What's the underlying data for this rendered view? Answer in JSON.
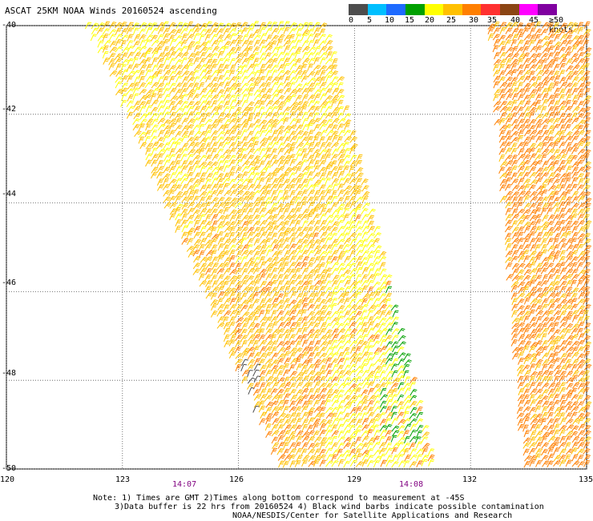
{
  "title": "ASCAT 25KM NOAA Winds 20160524 ascending",
  "legend": {
    "labels": [
      "0",
      "5",
      "10",
      "15",
      "20",
      "25",
      "30",
      "35",
      "40",
      "45",
      "≥50 knots"
    ],
    "colors": [
      "#4d4d4d",
      "#00bfff",
      "#1e6bff",
      "#00a000",
      "#ffff00",
      "#ffc000",
      "#ff7f00",
      "#ff3030",
      "#8b4513",
      "#ff00ff",
      "#8000a0"
    ]
  },
  "y_ticks": [
    "-40",
    "-42",
    "-44",
    "-46",
    "-48",
    "-50"
  ],
  "x_ticks": [
    "120",
    "123",
    "126",
    "129",
    "132",
    "135"
  ],
  "times": [
    "14:07",
    "14:08"
  ],
  "notes": [
    "Note: 1) Times are GMT 2)Times along bottom correspond to measurement at -45S",
    "3)Data buffer is 22 hrs from 20160524 4) Black wind barbs indicate possible contamination",
    "NOAA/NESDIS/Center for Satellite Applications and Research"
  ],
  "map_data": {
    "lon_range": [
      120,
      135
    ],
    "lat_range": [
      -50,
      -40
    ],
    "swaths": [
      {
        "name": "west",
        "corners_lon_lat": [
          [
            122.0,
            -40.0
          ],
          [
            128.2,
            -40.0
          ],
          [
            131.0,
            -50.0
          ],
          [
            127.0,
            -50.0
          ]
        ]
      },
      {
        "name": "east",
        "corners_lon_lat": [
          [
            132.4,
            -40.0
          ],
          [
            135.0,
            -40.0
          ],
          [
            135.0,
            -50.0
          ],
          [
            133.3,
            -50.0
          ]
        ]
      }
    ],
    "wind_speed_knots_typical": {
      "west_swath_north": 25,
      "west_swath_south": 30,
      "green_patch": 20,
      "east_swath": 30
    }
  }
}
